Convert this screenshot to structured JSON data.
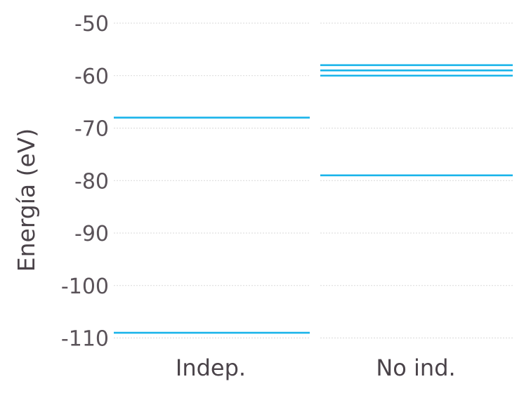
{
  "chart_data": {
    "type": "line",
    "ylabel": "Energía (eV)",
    "ylim": [
      -112,
      -46
    ],
    "yticks": [
      -50,
      -60,
      -70,
      -80,
      -90,
      -100,
      -110
    ],
    "ytick_labels": [
      "-50",
      "-60",
      "-70",
      "-80",
      "-90",
      "-100",
      "-110"
    ],
    "categories": [
      "Indep.",
      "No ind."
    ],
    "grid": true,
    "line_color": "#1ab4ea",
    "panels": [
      {
        "category": "Indep.",
        "levels": [
          -68,
          -109
        ]
      },
      {
        "category": "No ind.",
        "levels": [
          -58,
          -59,
          -60,
          -79
        ]
      }
    ]
  }
}
